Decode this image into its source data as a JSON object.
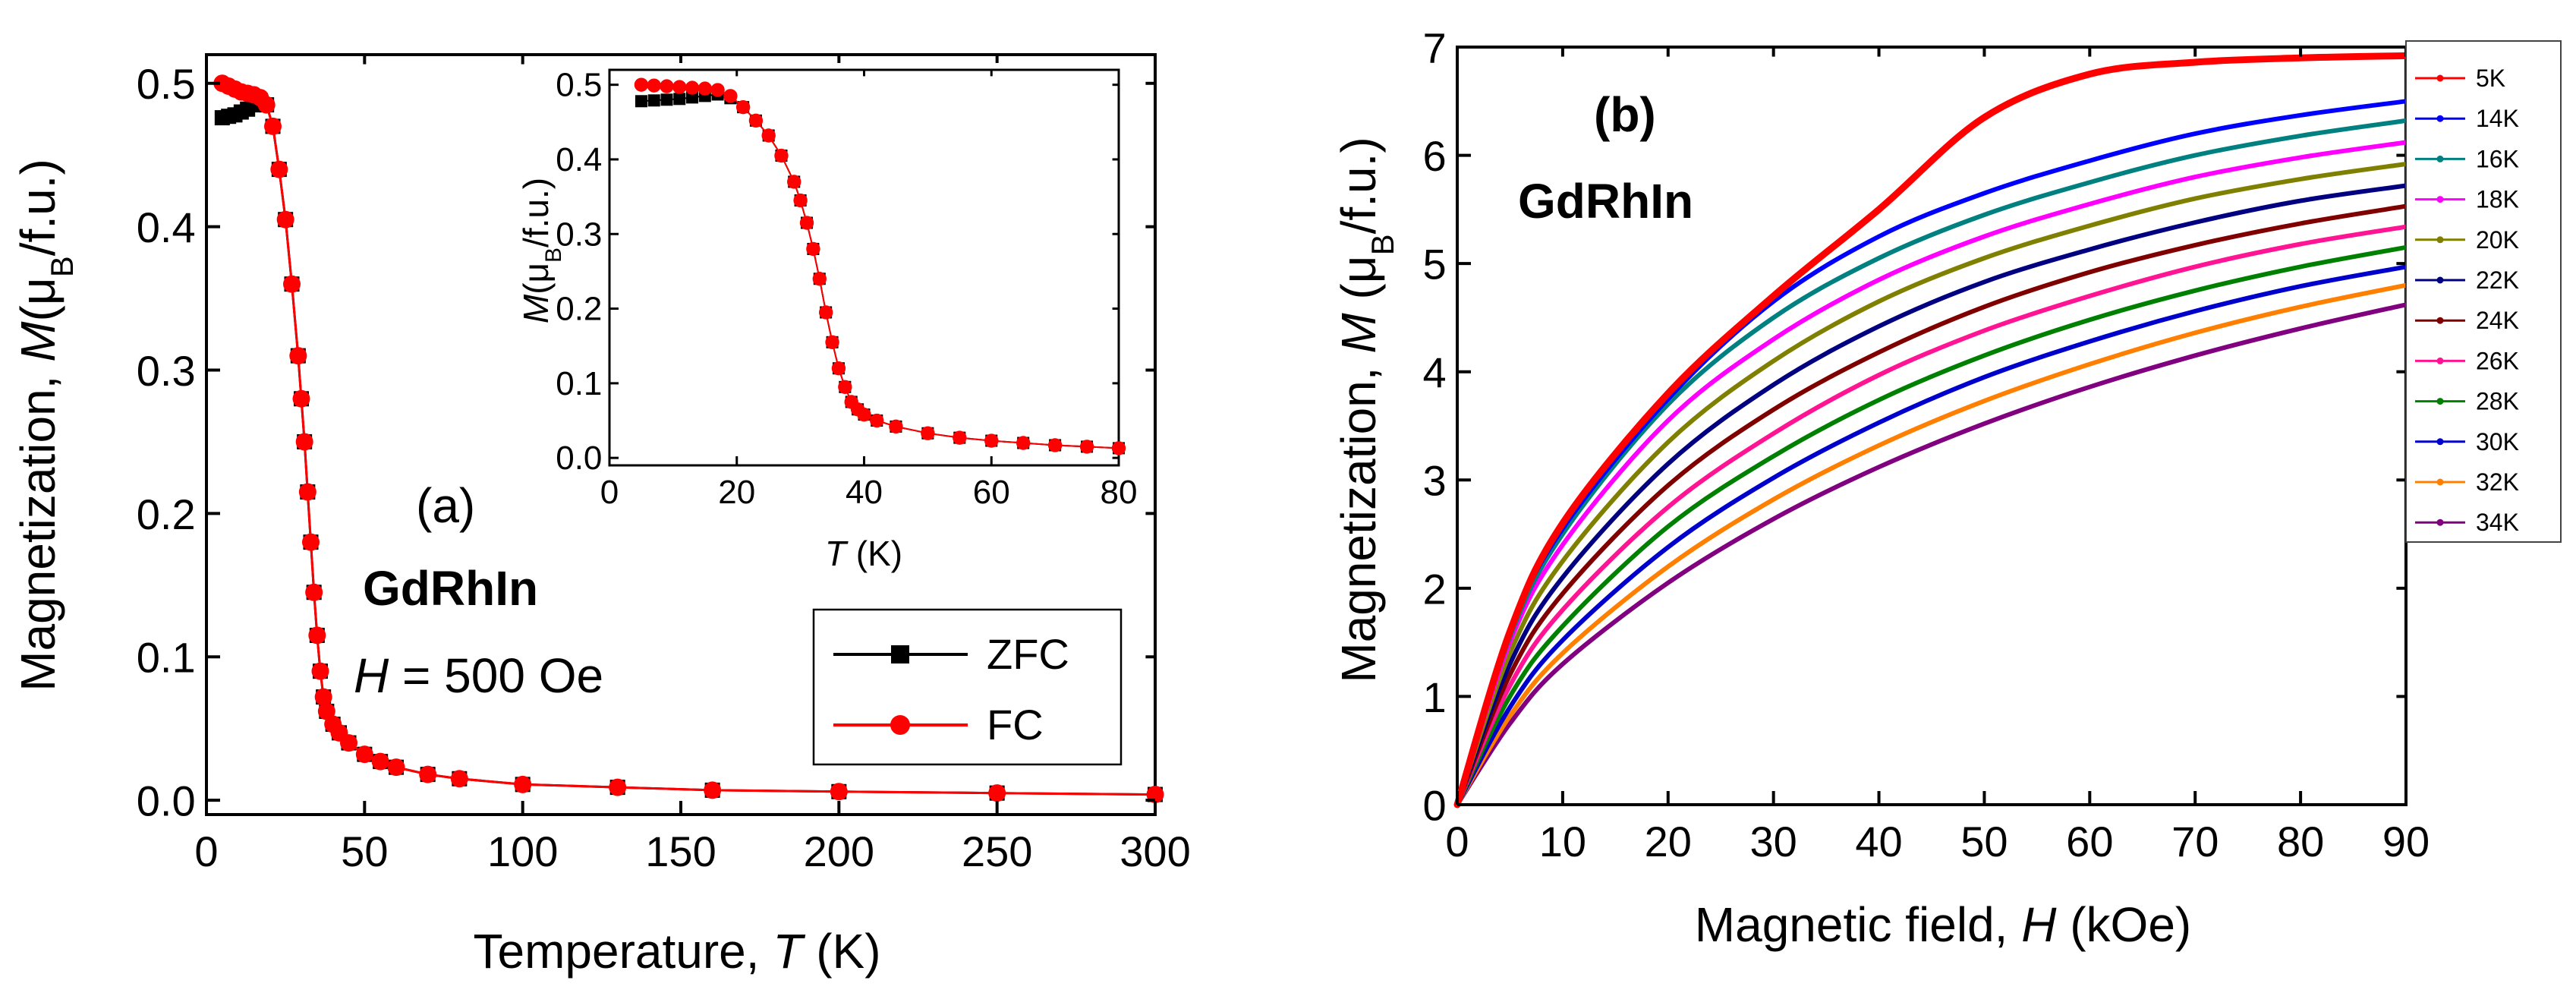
{
  "chart_data": [
    {
      "id": "a",
      "type": "scatter",
      "panel_label": "(a)",
      "sample": "GdRhIn",
      "field_label": "H",
      "field_value": "= 500 Oe",
      "xlabel": "Temperature, ",
      "xlabel_var": "T",
      "xlabel_unit": " (K)",
      "ylabel": "Magnetization, ",
      "ylabel_var": "M",
      "ylabel_unit": "(μ",
      "ylabel_sub": "B",
      "ylabel_tail": "/f.u.)",
      "xlim": [
        0,
        300
      ],
      "ylim": [
        -0.01,
        0.52
      ],
      "xticks": [
        "0",
        "50",
        "100",
        "150",
        "200",
        "250",
        "300"
      ],
      "yticks": [
        "0.0",
        "0.1",
        "0.2",
        "0.3",
        "0.4",
        "0.5"
      ],
      "legend_position": "bottom-right",
      "series": [
        {
          "name": "ZFC",
          "color": "#000000",
          "marker": "square",
          "points": [
            [
              5,
              0.476
            ],
            [
              7,
              0.477
            ],
            [
              9,
              0.478
            ],
            [
              11,
              0.48
            ],
            [
              13,
              0.482
            ],
            [
              15,
              0.485
            ],
            [
              17,
              0.488
            ],
            [
              19,
              0.485
            ],
            [
              21,
              0.47
            ],
            [
              23,
              0.44
            ],
            [
              25,
              0.405
            ],
            [
              27,
              0.36
            ],
            [
              29,
              0.31
            ],
            [
              30,
              0.28
            ],
            [
              31,
              0.25
            ],
            [
              32,
              0.215
            ],
            [
              33,
              0.18
            ],
            [
              34,
              0.145
            ],
            [
              35,
              0.115
            ],
            [
              36,
              0.09
            ],
            [
              37,
              0.072
            ],
            [
              38,
              0.062
            ],
            [
              40,
              0.053
            ],
            [
              42,
              0.047
            ],
            [
              45,
              0.04
            ],
            [
              50,
              0.032
            ],
            [
              55,
              0.027
            ],
            [
              60,
              0.023
            ],
            [
              70,
              0.018
            ],
            [
              80,
              0.015
            ],
            [
              100,
              0.011
            ],
            [
              130,
              0.009
            ],
            [
              160,
              0.007
            ],
            [
              200,
              0.006
            ],
            [
              250,
              0.005
            ],
            [
              300,
              0.004
            ]
          ]
        },
        {
          "name": "FC",
          "color": "#ff0000",
          "marker": "circle",
          "points": [
            [
              5,
              0.5
            ],
            [
              7,
              0.498
            ],
            [
              9,
              0.496
            ],
            [
              11,
              0.494
            ],
            [
              13,
              0.493
            ],
            [
              15,
              0.492
            ],
            [
              17,
              0.49
            ],
            [
              19,
              0.485
            ],
            [
              21,
              0.47
            ],
            [
              23,
              0.44
            ],
            [
              25,
              0.405
            ],
            [
              27,
              0.36
            ],
            [
              29,
              0.31
            ],
            [
              30,
              0.28
            ],
            [
              31,
              0.25
            ],
            [
              32,
              0.215
            ],
            [
              33,
              0.18
            ],
            [
              34,
              0.145
            ],
            [
              35,
              0.115
            ],
            [
              36,
              0.09
            ],
            [
              37,
              0.072
            ],
            [
              38,
              0.062
            ],
            [
              40,
              0.053
            ],
            [
              42,
              0.047
            ],
            [
              45,
              0.04
            ],
            [
              50,
              0.032
            ],
            [
              55,
              0.027
            ],
            [
              60,
              0.023
            ],
            [
              70,
              0.018
            ],
            [
              80,
              0.015
            ],
            [
              100,
              0.011
            ],
            [
              130,
              0.009
            ],
            [
              160,
              0.007
            ],
            [
              200,
              0.006
            ],
            [
              250,
              0.005
            ],
            [
              300,
              0.004
            ]
          ]
        }
      ]
    },
    {
      "id": "a-inset",
      "type": "scatter",
      "xlabel_var": "T",
      "xlabel_unit": " (K)",
      "ylabel_var": "M",
      "ylabel_unit": "(μ",
      "ylabel_sub": "B",
      "ylabel_tail": "/f.u.)",
      "xlim": [
        0,
        80
      ],
      "ylim": [
        -0.01,
        0.52
      ],
      "xticks": [
        "0",
        "20",
        "40",
        "60",
        "80"
      ],
      "yticks": [
        "0.0",
        "0.1",
        "0.2",
        "0.3",
        "0.4",
        "0.5"
      ],
      "series": [
        {
          "name": "ZFC",
          "color": "#000000",
          "marker": "square",
          "points": [
            [
              5,
              0.478
            ],
            [
              7,
              0.479
            ],
            [
              9,
              0.48
            ],
            [
              11,
              0.481
            ],
            [
              13,
              0.483
            ],
            [
              15,
              0.485
            ],
            [
              17,
              0.487
            ],
            [
              19,
              0.482
            ],
            [
              21,
              0.47
            ],
            [
              23,
              0.452
            ],
            [
              25,
              0.432
            ],
            [
              27,
              0.405
            ],
            [
              29,
              0.37
            ],
            [
              30,
              0.345
            ],
            [
              31,
              0.315
            ],
            [
              32,
              0.28
            ],
            [
              33,
              0.24
            ],
            [
              34,
              0.195
            ],
            [
              35,
              0.155
            ],
            [
              36,
              0.12
            ],
            [
              37,
              0.095
            ],
            [
              38,
              0.075
            ],
            [
              39,
              0.065
            ],
            [
              40,
              0.058
            ],
            [
              42,
              0.05
            ],
            [
              45,
              0.042
            ],
            [
              50,
              0.033
            ],
            [
              55,
              0.027
            ],
            [
              60,
              0.023
            ],
            [
              65,
              0.02
            ],
            [
              70,
              0.017
            ],
            [
              75,
              0.015
            ],
            [
              80,
              0.013
            ]
          ]
        },
        {
          "name": "FC",
          "color": "#ff0000",
          "marker": "circle",
          "points": [
            [
              5,
              0.5
            ],
            [
              7,
              0.499
            ],
            [
              9,
              0.498
            ],
            [
              11,
              0.497
            ],
            [
              13,
              0.496
            ],
            [
              15,
              0.495
            ],
            [
              17,
              0.493
            ],
            [
              19,
              0.485
            ],
            [
              21,
              0.47
            ],
            [
              23,
              0.452
            ],
            [
              25,
              0.432
            ],
            [
              27,
              0.405
            ],
            [
              29,
              0.37
            ],
            [
              30,
              0.345
            ],
            [
              31,
              0.315
            ],
            [
              32,
              0.28
            ],
            [
              33,
              0.24
            ],
            [
              34,
              0.195
            ],
            [
              35,
              0.155
            ],
            [
              36,
              0.12
            ],
            [
              37,
              0.095
            ],
            [
              38,
              0.075
            ],
            [
              39,
              0.065
            ],
            [
              40,
              0.058
            ],
            [
              42,
              0.05
            ],
            [
              45,
              0.042
            ],
            [
              50,
              0.033
            ],
            [
              55,
              0.027
            ],
            [
              60,
              0.023
            ],
            [
              65,
              0.02
            ],
            [
              70,
              0.017
            ],
            [
              75,
              0.015
            ],
            [
              80,
              0.013
            ]
          ]
        }
      ]
    },
    {
      "id": "b",
      "type": "line",
      "panel_label": "(b)",
      "sample": "GdRhIn",
      "xlabel": "Magnetic field, ",
      "xlabel_var": "H",
      "xlabel_unit": " (kOe)",
      "ylabel": "Magnetization, ",
      "ylabel_var": "M",
      "ylabel_unit": " (μ",
      "ylabel_sub": "B",
      "ylabel_tail": "/f.u.)",
      "xlim": [
        0,
        90
      ],
      "ylim": [
        0,
        7
      ],
      "xticks": [
        "0",
        "10",
        "20",
        "30",
        "40",
        "50",
        "60",
        "70",
        "80",
        "90"
      ],
      "yticks": [
        "0",
        "1",
        "2",
        "3",
        "4",
        "5",
        "6",
        "7"
      ],
      "legend_position": "outside-right",
      "x": [
        0,
        5,
        10,
        20,
        30,
        40,
        50,
        60,
        70,
        80,
        90
      ],
      "series": [
        {
          "name": "5K",
          "color": "#ff0000",
          "values": [
            0,
            1.6,
            2.6,
            3.8,
            4.7,
            5.5,
            6.35,
            6.75,
            6.86,
            6.9,
            6.92
          ]
        },
        {
          "name": "14K",
          "color": "#0000ff",
          "values": [
            0,
            1.6,
            2.55,
            3.75,
            4.65,
            5.25,
            5.65,
            5.95,
            6.2,
            6.37,
            6.5
          ]
        },
        {
          "name": "16K",
          "color": "#008080",
          "values": [
            0,
            1.55,
            2.5,
            3.7,
            4.5,
            5.05,
            5.45,
            5.75,
            6.0,
            6.18,
            6.32
          ]
        },
        {
          "name": "18K",
          "color": "#ff00ff",
          "values": [
            0,
            1.5,
            2.4,
            3.55,
            4.3,
            4.85,
            5.25,
            5.55,
            5.8,
            5.98,
            6.12
          ]
        },
        {
          "name": "20K",
          "color": "#808000",
          "values": [
            0,
            1.4,
            2.25,
            3.35,
            4.1,
            4.65,
            5.05,
            5.35,
            5.6,
            5.78,
            5.92
          ]
        },
        {
          "name": "22K",
          "color": "#000080",
          "values": [
            0,
            1.3,
            2.1,
            3.15,
            3.88,
            4.42,
            4.83,
            5.13,
            5.38,
            5.58,
            5.72
          ]
        },
        {
          "name": "24K",
          "color": "#800000",
          "values": [
            0,
            1.2,
            1.95,
            2.95,
            3.65,
            4.18,
            4.6,
            4.92,
            5.17,
            5.37,
            5.53
          ]
        },
        {
          "name": "26K",
          "color": "#ff1493",
          "values": [
            0,
            1.1,
            1.8,
            2.75,
            3.43,
            3.97,
            4.38,
            4.7,
            4.97,
            5.18,
            5.34
          ]
        },
        {
          "name": "28K",
          "color": "#008000",
          "values": [
            0,
            1.0,
            1.65,
            2.57,
            3.22,
            3.74,
            4.15,
            4.48,
            4.75,
            4.97,
            5.15
          ]
        },
        {
          "name": "30K",
          "color": "#0000cd",
          "values": [
            0,
            0.9,
            1.52,
            2.38,
            3.02,
            3.53,
            3.95,
            4.28,
            4.56,
            4.79,
            4.97
          ]
        },
        {
          "name": "32K",
          "color": "#ff8000",
          "values": [
            0,
            0.82,
            1.4,
            2.2,
            2.82,
            3.32,
            3.73,
            4.07,
            4.36,
            4.6,
            4.8
          ]
        },
        {
          "name": "34K",
          "color": "#800080",
          "values": [
            0,
            0.75,
            1.3,
            2.05,
            2.64,
            3.12,
            3.52,
            3.86,
            4.15,
            4.4,
            4.62
          ]
        }
      ]
    }
  ]
}
